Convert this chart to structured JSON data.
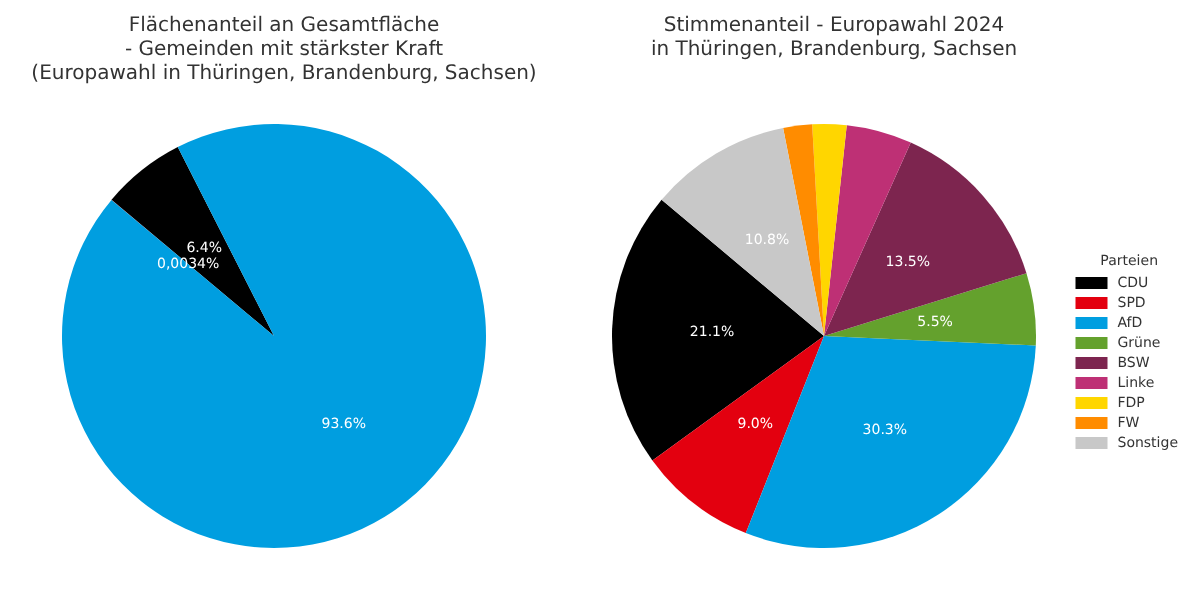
{
  "chart_data": [
    {
      "type": "pie",
      "title": "Flächenanteil an Gesamtfläche\n- Gemeinden mit stärkster Kraft\n(Europawahl in Thüringen, Brandenburg, Sachsen)",
      "categories": [
        null,
        null,
        null
      ],
      "values": [
        6.4,
        0.0034,
        93.6
      ],
      "colors": [
        "#000000",
        "#e3000f",
        "#009ee0"
      ],
      "value_labels": [
        "6.4%",
        "0,0034%",
        "93.6%"
      ],
      "legend": false
    },
    {
      "type": "pie",
      "title": "Stimmenanteil - Europawahl 2024\nin Thüringen, Brandenburg, Sachsen",
      "categories": [
        "CDU",
        "SPD",
        "AfD",
        "Grüne",
        "BSW",
        "Linke",
        "FDP",
        "FW",
        "Sonstige"
      ],
      "values": [
        21.1,
        9.0,
        30.3,
        5.5,
        13.5,
        5.0,
        2.6,
        2.2,
        10.8
      ],
      "colors": [
        "#000000",
        "#e3000f",
        "#009ee0",
        "#64a12d",
        "#7d254f",
        "#be3075",
        "#ffd600",
        "#ff8c00",
        "#c8c8c8"
      ],
      "value_labels": [
        "21.1%",
        "9.0%",
        "30.3%",
        "5.5%",
        "13.5%",
        null,
        null,
        null,
        "10.8%"
      ],
      "legend": "right",
      "legend_title": "Parteien"
    }
  ]
}
